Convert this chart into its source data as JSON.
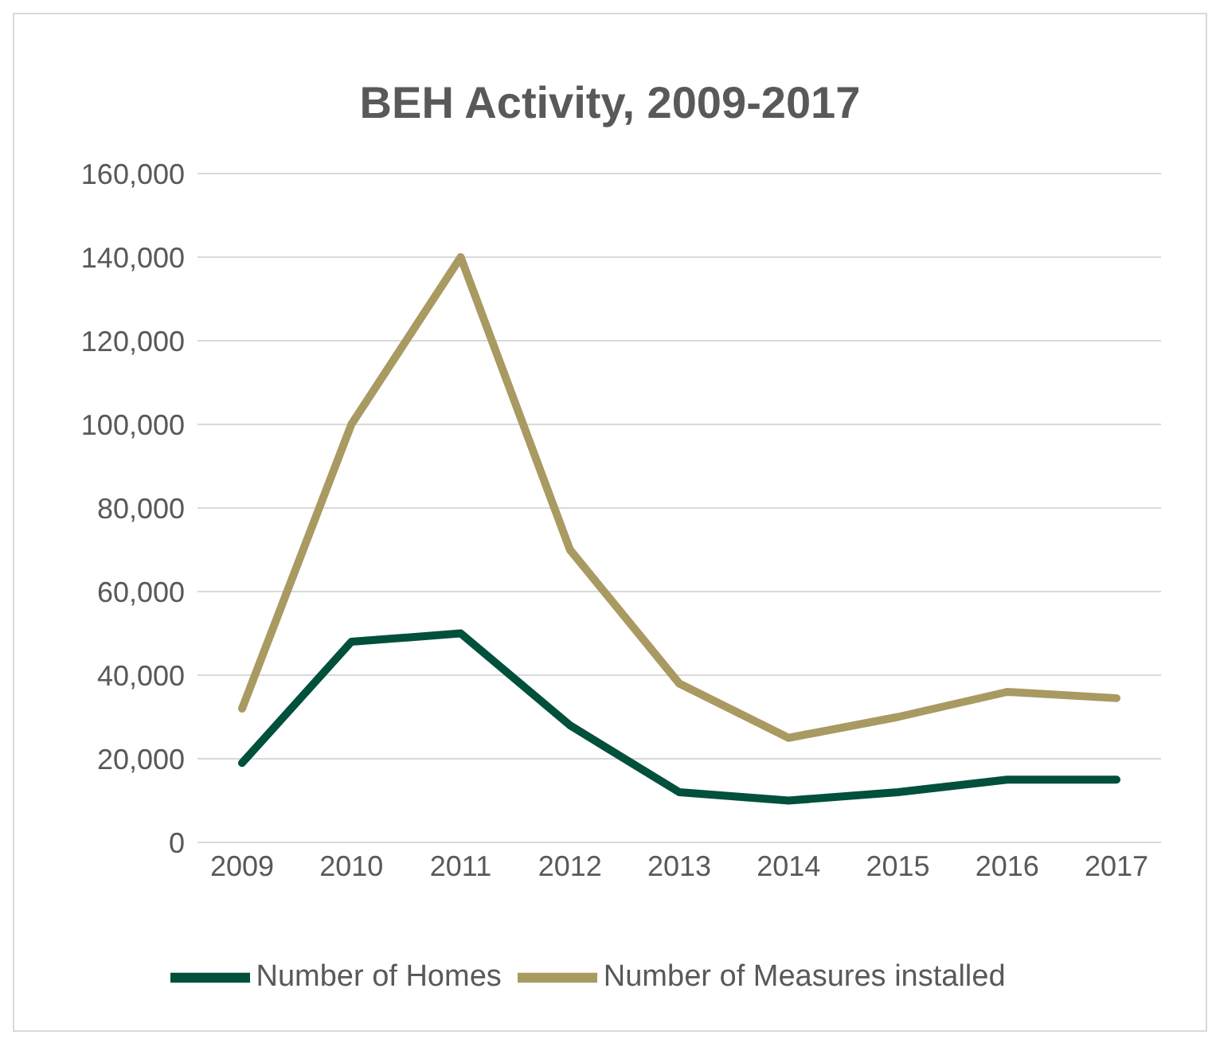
{
  "chart_data": {
    "type": "line",
    "title": "BEH Activity, 2009-2017",
    "categories": [
      "2009",
      "2010",
      "2011",
      "2012",
      "2013",
      "2014",
      "2015",
      "2016",
      "2017"
    ],
    "series": [
      {
        "name": "Number of Homes",
        "color": "#00503c",
        "values": [
          19000,
          48000,
          50000,
          28000,
          12000,
          10000,
          12000,
          15000,
          15000
        ]
      },
      {
        "name": "Number of Measures installed",
        "color": "#a99a62",
        "values": [
          32000,
          100000,
          140000,
          70000,
          38000,
          25000,
          30000,
          36000,
          34500
        ]
      }
    ],
    "ylim": [
      0,
      160000
    ],
    "yticks": [
      0,
      {
        "value": 20000,
        "label": "20,000"
      },
      {
        "value": 40000,
        "label": "40,000"
      },
      {
        "value": 60000,
        "label": "60,000"
      },
      {
        "value": 80000,
        "label": "80,000"
      },
      {
        "value": 100000,
        "label": "100,000"
      },
      {
        "value": 120000,
        "label": "120,000"
      },
      {
        "value": 140000,
        "label": "140,000"
      },
      {
        "value": 160000,
        "label": "160,000"
      }
    ],
    "grid": "y",
    "legend": "bottom",
    "marker": "none",
    "line_style": "solid"
  }
}
